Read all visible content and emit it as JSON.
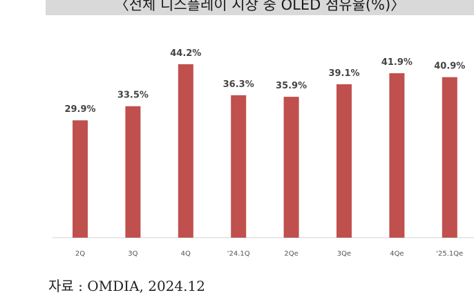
{
  "chart_data": {
    "type": "bar",
    "title": "〈전체 디스플레이 시장 중 OLED 점유율(%)〉",
    "categories": [
      "2Q",
      "3Q",
      "4Q",
      "'24.1Q",
      "2Qe",
      "3Qe",
      "4Qe",
      "'25.1Qe"
    ],
    "values": [
      29.9,
      33.5,
      44.2,
      36.3,
      35.9,
      39.1,
      41.9,
      40.9
    ],
    "value_labels": [
      "29.9%",
      "33.5%",
      "44.2%",
      "36.3%",
      "35.9%",
      "39.1%",
      "41.9%",
      "40.9%"
    ],
    "xlabel": "",
    "ylabel": "",
    "ylim": [
      0,
      48
    ],
    "grid": false,
    "bar_color": "#c0504d"
  },
  "source": "자료 : OMDIA, 2024.12"
}
